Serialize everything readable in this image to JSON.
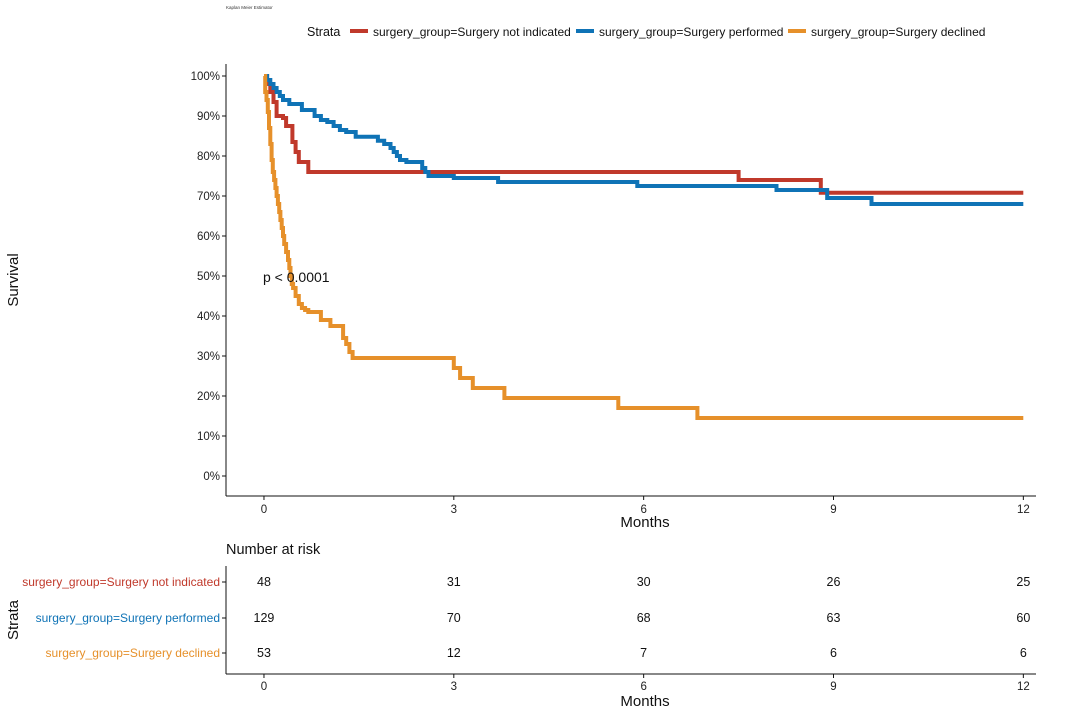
{
  "title": "Kaplan Meier Estimator",
  "legend": {
    "title": "Strata",
    "position": "top",
    "items": [
      {
        "label": "surgery_group=Surgery not indicated",
        "color": "#c0392b"
      },
      {
        "label": "surgery_group=Surgery performed",
        "color": "#0f73b6"
      },
      {
        "label": "surgery_group=Surgery declined",
        "color": "#e6902a"
      }
    ]
  },
  "annotation": "p < 0.0001",
  "chart_data": [
    {
      "type": "line",
      "subtype": "step",
      "xlabel": "Months",
      "ylabel": "Survival",
      "xlim": [
        -0.6,
        12.2
      ],
      "ylim": [
        0,
        1
      ],
      "xticks": [
        0,
        3,
        6,
        9,
        12
      ],
      "yticks": [
        0,
        0.1,
        0.2,
        0.3,
        0.4,
        0.5,
        0.6,
        0.7,
        0.8,
        0.9,
        1.0
      ],
      "ytick_labels": [
        "0%",
        "10%",
        "20%",
        "30%",
        "40%",
        "50%",
        "60%",
        "70%",
        "80%",
        "90%",
        "100%"
      ],
      "grid": false,
      "series": [
        {
          "name": "surgery_group=Surgery not indicated",
          "color": "#c0392b",
          "x": [
            0,
            0.05,
            0.1,
            0.15,
            0.2,
            0.3,
            0.35,
            0.45,
            0.5,
            0.55,
            0.7,
            7.4,
            7.5,
            8.8,
            12
          ],
          "y": [
            1.0,
            0.98,
            0.96,
            0.935,
            0.9,
            0.895,
            0.875,
            0.835,
            0.81,
            0.785,
            0.76,
            0.76,
            0.74,
            0.708,
            0.708
          ]
        },
        {
          "name": "surgery_group=Surgery performed",
          "color": "#0f73b6",
          "x": [
            0,
            0.05,
            0.1,
            0.15,
            0.2,
            0.25,
            0.3,
            0.4,
            0.6,
            0.8,
            0.9,
            1.0,
            1.1,
            1.2,
            1.3,
            1.45,
            1.8,
            1.9,
            2.0,
            2.05,
            2.1,
            2.15,
            2.25,
            2.5,
            2.55,
            2.6,
            3.0,
            3.7,
            5.9,
            8.1,
            8.9,
            9.6,
            12
          ],
          "y": [
            1.0,
            0.99,
            0.98,
            0.97,
            0.96,
            0.95,
            0.94,
            0.93,
            0.915,
            0.9,
            0.89,
            0.885,
            0.875,
            0.865,
            0.86,
            0.848,
            0.838,
            0.83,
            0.82,
            0.81,
            0.8,
            0.79,
            0.785,
            0.77,
            0.76,
            0.75,
            0.745,
            0.735,
            0.725,
            0.715,
            0.695,
            0.68,
            0.68
          ]
        },
        {
          "name": "surgery_group=Surgery declined",
          "color": "#e6902a",
          "x": [
            0,
            0.02,
            0.04,
            0.06,
            0.08,
            0.1,
            0.12,
            0.14,
            0.16,
            0.18,
            0.2,
            0.22,
            0.24,
            0.26,
            0.28,
            0.3,
            0.32,
            0.35,
            0.38,
            0.4,
            0.42,
            0.44,
            0.46,
            0.5,
            0.55,
            0.6,
            0.65,
            0.7,
            0.9,
            1.05,
            1.25,
            1.3,
            1.35,
            1.4,
            3.0,
            3.1,
            3.3,
            3.8,
            5.6,
            6.85,
            12
          ],
          "y": [
            1.0,
            0.96,
            0.94,
            0.91,
            0.87,
            0.83,
            0.79,
            0.76,
            0.74,
            0.72,
            0.7,
            0.68,
            0.66,
            0.64,
            0.62,
            0.6,
            0.58,
            0.56,
            0.54,
            0.52,
            0.5,
            0.48,
            0.47,
            0.45,
            0.43,
            0.42,
            0.415,
            0.41,
            0.39,
            0.375,
            0.345,
            0.33,
            0.31,
            0.295,
            0.27,
            0.245,
            0.22,
            0.195,
            0.17,
            0.145,
            0.145
          ]
        }
      ]
    },
    {
      "type": "table",
      "title": "Number at risk",
      "xlabel": "Months",
      "ylabel": "Strata",
      "xticks": [
        0,
        3,
        6,
        9,
        12
      ],
      "rows": [
        {
          "label": "surgery_group=Surgery not indicated",
          "color": "#c0392b",
          "values": [
            48,
            31,
            30,
            26,
            25
          ]
        },
        {
          "label": "surgery_group=Surgery performed",
          "color": "#0f73b6",
          "values": [
            129,
            70,
            68,
            63,
            60
          ]
        },
        {
          "label": "surgery_group=Surgery declined",
          "color": "#e6902a",
          "values": [
            53,
            12,
            7,
            6,
            6
          ]
        }
      ]
    }
  ]
}
